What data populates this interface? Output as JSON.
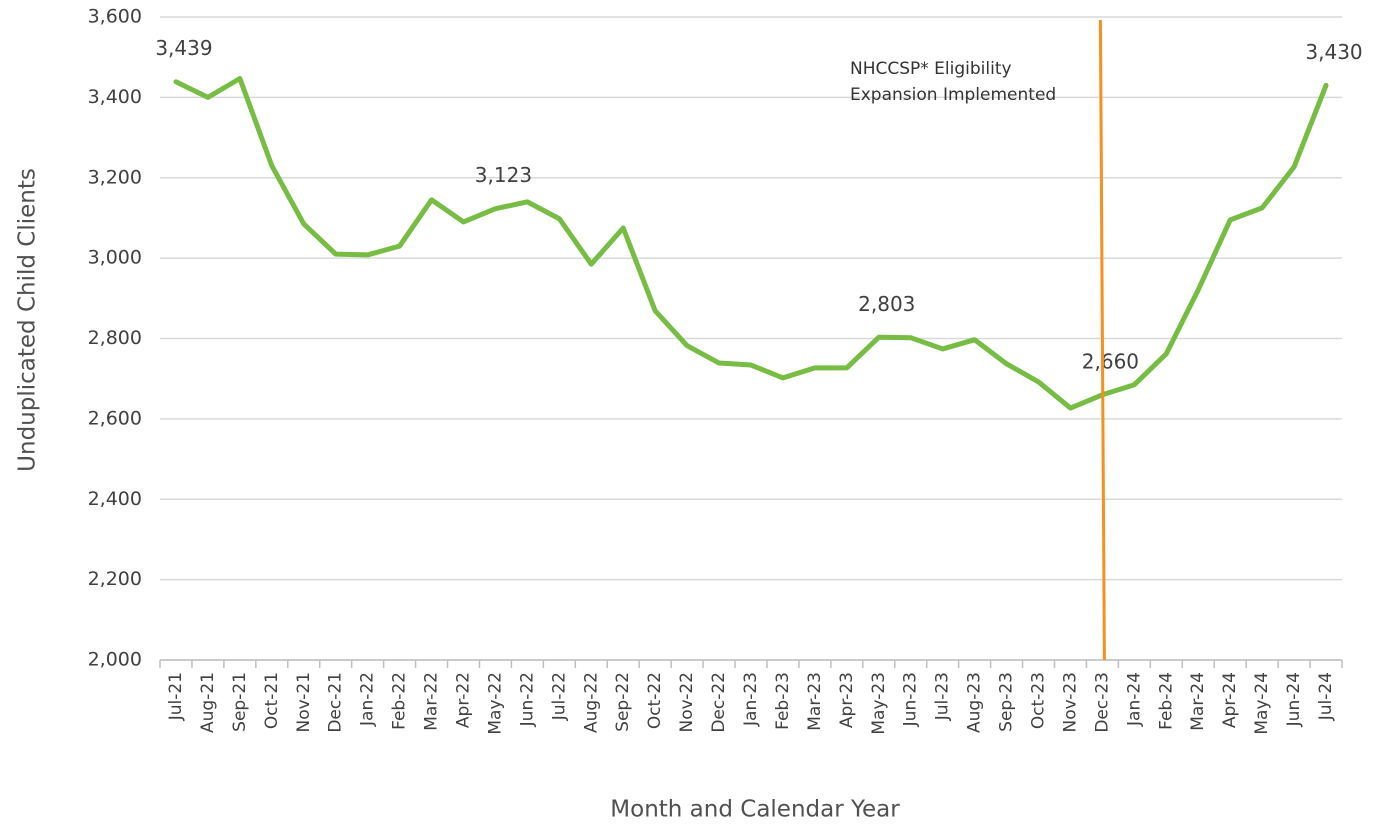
{
  "chart_data": {
    "type": "line",
    "x_label": "Month and Calendar Year",
    "y_label": "Unduplicated Child Clients",
    "categories": [
      "Jul-21",
      "Aug-21",
      "Sep-21",
      "Oct-21",
      "Nov-21",
      "Dec-21",
      "Jan-22",
      "Feb-22",
      "Mar-22",
      "Apr-22",
      "May-22",
      "Jun-22",
      "Jul-22",
      "Aug-22",
      "Sep-22",
      "Oct-22",
      "Nov-22",
      "Dec-22",
      "Jan-23",
      "Feb-23",
      "Mar-23",
      "Apr-23",
      "May-23",
      "Jun-23",
      "Jul-23",
      "Aug-23",
      "Sep-23",
      "Oct-23",
      "Nov-23",
      "Dec-23",
      "Jan-24",
      "Feb-24",
      "Mar-24",
      "Apr-24",
      "May-24",
      "Jun-24",
      "Jul-24"
    ],
    "series": [
      {
        "name": "Unduplicated Child Clients",
        "color": "#77bc43",
        "values": [
          3439,
          3400,
          3447,
          3230,
          3085,
          3010,
          3008,
          3030,
          3145,
          3090,
          3123,
          3140,
          3098,
          2985,
          3075,
          2869,
          2782,
          2739,
          2734,
          2702,
          2727,
          2727,
          2803,
          2802,
          2774,
          2797,
          2737,
          2692,
          2627,
          2660,
          2685,
          2762,
          2921,
          3095,
          3125,
          3227,
          3430
        ],
        "value_labels": [
          "3,439",
          null,
          null,
          null,
          null,
          null,
          null,
          null,
          null,
          null,
          "3,123",
          null,
          null,
          null,
          null,
          null,
          null,
          null,
          null,
          null,
          null,
          null,
          "2,803",
          null,
          null,
          null,
          null,
          null,
          null,
          "2,660",
          null,
          null,
          null,
          null,
          null,
          null,
          "3,430"
        ]
      }
    ],
    "ylim": [
      2000,
      3600
    ],
    "yticks": [
      {
        "value": 2000,
        "label": "2,000"
      },
      {
        "value": 2200,
        "label": "2,200"
      },
      {
        "value": 2400,
        "label": "2,400"
      },
      {
        "value": 2600,
        "label": "2,600"
      },
      {
        "value": 2800,
        "label": "2,800"
      },
      {
        "value": 3000,
        "label": "3,000"
      },
      {
        "value": 3200,
        "label": "3,200"
      },
      {
        "value": 3400,
        "label": "3,400"
      },
      {
        "value": 3600,
        "label": "3,600"
      }
    ],
    "grid": true,
    "annotation": {
      "lines": [
        "NHCCSP* Eligibility",
        "Expansion Implemented"
      ],
      "color": "#f7901e"
    }
  }
}
